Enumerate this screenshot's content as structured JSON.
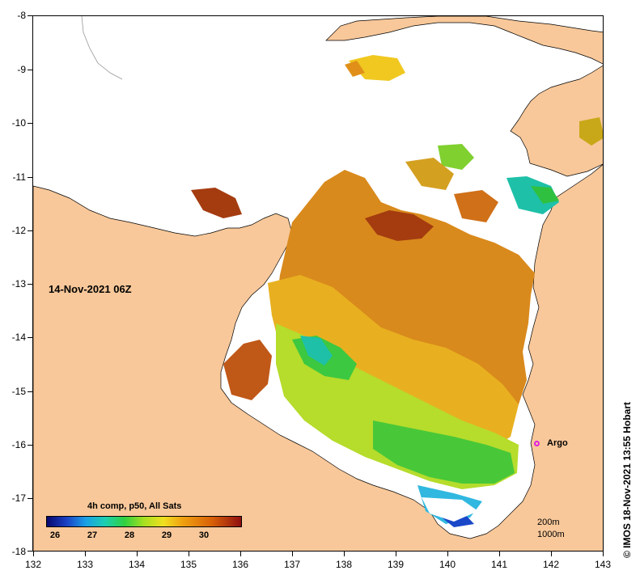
{
  "map": {
    "timestamp": "14-Nov-2021 06Z",
    "credit": "© IMOS 18-Nov-2021 13:55 Hobart",
    "marker_label": "Argo",
    "scale_labels": [
      "200m",
      "1000m"
    ],
    "latitude_ticks": [
      "-8",
      "-9",
      "-10",
      "-11",
      "-12",
      "-13",
      "-14",
      "-15",
      "-16",
      "-17",
      "-18"
    ],
    "longitude_ticks": [
      "132",
      "133",
      "134",
      "135",
      "136",
      "137",
      "138",
      "139",
      "140",
      "141",
      "142",
      "143"
    ],
    "colors": {
      "land": "#f8c89a",
      "cloud": "#ffffff",
      "argo": "#e020e0"
    }
  },
  "legend": {
    "title": "4h comp, p50, All Sats",
    "labels": [
      "26",
      "27",
      "28",
      "29",
      "30"
    ]
  }
}
